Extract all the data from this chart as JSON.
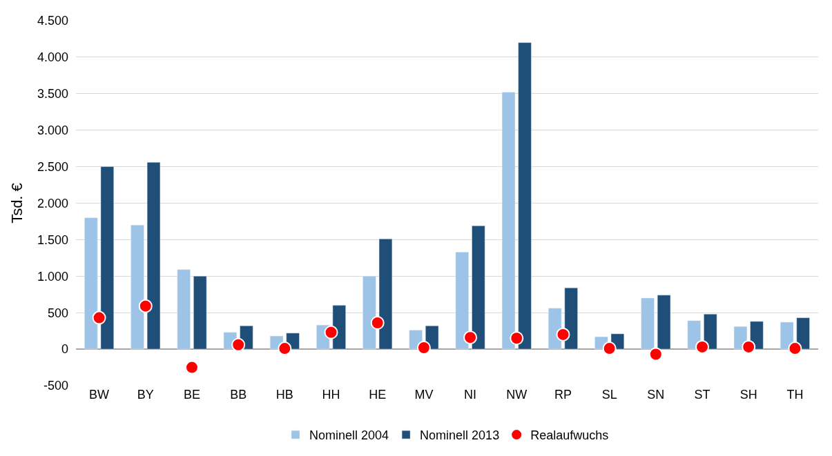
{
  "chart_data": {
    "type": "bar",
    "ylabel": "Tsd. €",
    "categories": [
      "BW",
      "BY",
      "BE",
      "BB",
      "HB",
      "HH",
      "HE",
      "MV",
      "NI",
      "NW",
      "RP",
      "SL",
      "SN",
      "ST",
      "SH",
      "TH"
    ],
    "series": [
      {
        "name": "Nominell 2004",
        "color": "#9dc3e6",
        "values": [
          1800,
          1700,
          1090,
          230,
          180,
          330,
          1000,
          260,
          1330,
          3520,
          560,
          170,
          700,
          390,
          310,
          370
        ]
      },
      {
        "name": "Nominell 2013",
        "color": "#1f4e79",
        "values": [
          2500,
          2560,
          1000,
          320,
          220,
          600,
          1510,
          320,
          1690,
          4200,
          840,
          210,
          740,
          480,
          380,
          430
        ]
      },
      {
        "name": "Realaufwuchs",
        "type": "scatter",
        "marker": "circle",
        "color": "#ff0000",
        "values": [
          430,
          590,
          -250,
          60,
          10,
          230,
          360,
          20,
          160,
          150,
          200,
          10,
          -70,
          30,
          30,
          10
        ]
      }
    ],
    "ylim": [
      -500,
      4500
    ],
    "yticks": [
      {
        "value": -500,
        "label": "-500"
      },
      {
        "value": 0,
        "label": "0"
      },
      {
        "value": 500,
        "label": "500"
      },
      {
        "value": 1000,
        "label": "1.000"
      },
      {
        "value": 1500,
        "label": "1.500"
      },
      {
        "value": 2000,
        "label": "2.000"
      },
      {
        "value": 2500,
        "label": "2.500"
      },
      {
        "value": 3000,
        "label": "3.000"
      },
      {
        "value": 3500,
        "label": "3.500"
      },
      {
        "value": 4000,
        "label": "4.000"
      },
      {
        "value": 4500,
        "label": "4.500"
      }
    ],
    "grid": "y",
    "legend": "bottom"
  }
}
